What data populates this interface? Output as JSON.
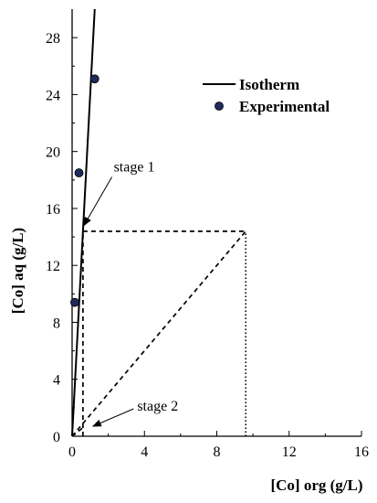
{
  "chart_data": {
    "type": "scatter",
    "xlabel": "[Co] org (g/L)",
    "ylabel": "[Co] aq (g/L)",
    "xlim": [
      0,
      16
    ],
    "ylim": [
      0,
      30
    ],
    "xticks": [
      0,
      4,
      8,
      12,
      16
    ],
    "yticks": [
      0,
      4,
      8,
      12,
      16,
      20,
      24,
      28
    ],
    "grid": false,
    "legend_position": "top-right",
    "legend": [
      "Isotherm",
      "Experimental"
    ],
    "series": [
      {
        "name": "Isotherm",
        "kind": "line",
        "x": [
          0,
          1.25
        ],
        "y": [
          0,
          30
        ]
      },
      {
        "name": "Experimental",
        "kind": "scatter",
        "color": "#1f2b5c",
        "x": [
          0.15,
          0.38,
          1.25
        ],
        "y": [
          9.4,
          18.5,
          25.1
        ]
      }
    ],
    "operating_lines": [
      {
        "style": "dashed",
        "x": [
          0,
          9.6
        ],
        "y": [
          0,
          14.4
        ]
      },
      {
        "style": "dashed",
        "x": [
          0.6,
          9.6
        ],
        "y": [
          14.4,
          14.4
        ]
      },
      {
        "style": "dashed",
        "x": [
          0.6,
          0.6
        ],
        "y": [
          0,
          14.4
        ]
      },
      {
        "style": "dashed",
        "x": [
          0,
          0.6
        ],
        "y": [
          0,
          0.6
        ]
      },
      {
        "style": "dotted",
        "x": [
          9.6,
          9.6
        ],
        "y": [
          0,
          14.4
        ]
      }
    ],
    "annotations": [
      {
        "text": "stage 1",
        "x": 2.3,
        "y": 18.6,
        "arrow_to": [
          0.65,
          14.8
        ]
      },
      {
        "text": "stage 2",
        "x": 3.6,
        "y": 1.8,
        "arrow_to": [
          1.15,
          0.7
        ]
      }
    ]
  }
}
